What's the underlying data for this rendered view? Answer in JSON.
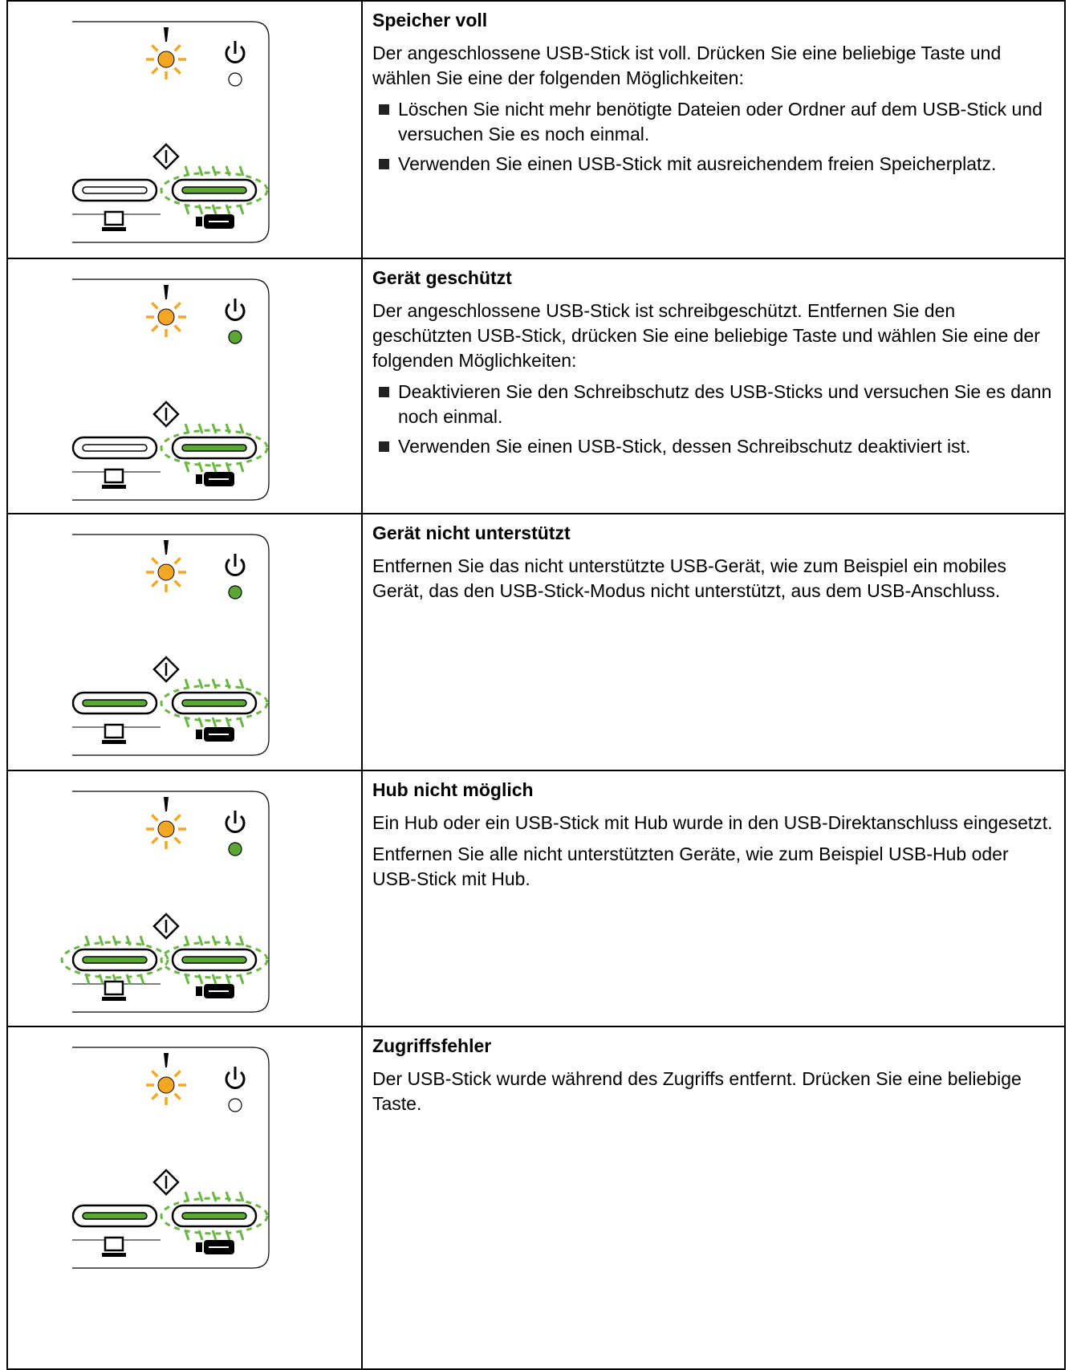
{
  "rows": [
    {
      "title": "Speicher voll",
      "paragraphs": [
        "Der angeschlossene USB-Stick ist voll. Drücken Sie eine beliebige Taste und wählen Sie eine der folgenden Möglichkeiten:"
      ],
      "bullets": [
        "Löschen Sie nicht mehr benötigte Dateien oder Ordner auf dem USB-Stick und versuchen Sie es noch einmal.",
        "Verwenden Sie einen USB-Stick mit ausreichendem freien Speicherplatz."
      ]
    },
    {
      "title": "Gerät geschützt",
      "paragraphs": [
        "Der angeschlossene USB-Stick ist schreibgeschützt. Entfernen Sie den geschützten USB-Stick, drücken Sie eine beliebige Taste und wählen Sie eine der folgenden Möglichkeiten:"
      ],
      "bullets": [
        "Deaktivieren Sie den Schreibschutz des USB-Sticks und versuchen Sie es dann noch einmal.",
        "Verwenden Sie einen USB-Stick, dessen Schreibschutz deaktiviert ist."
      ]
    },
    {
      "title": "Gerät nicht unterstützt",
      "paragraphs": [
        "Entfernen Sie das nicht unterstützte USB-Gerät, wie zum Beispiel ein mobiles Gerät, das den USB-Stick-Modus nicht unterstützt, aus dem USB-Anschluss."
      ],
      "bullets": []
    },
    {
      "title": "Hub nicht möglich",
      "paragraphs": [
        "Ein Hub oder ein USB-Stick mit Hub wurde in den USB-Direktanschluss eingesetzt.",
        "Entfernen Sie alle nicht unterstützten Geräte, wie zum Beispiel USB-Hub oder USB-Stick mit Hub."
      ],
      "bullets": []
    },
    {
      "title": "Zugriffsfehler",
      "paragraphs": [
        "Der USB-Stick wurde während des Zugriffs entfernt. Drücken Sie eine beliebige Taste."
      ],
      "bullets": []
    }
  ]
}
